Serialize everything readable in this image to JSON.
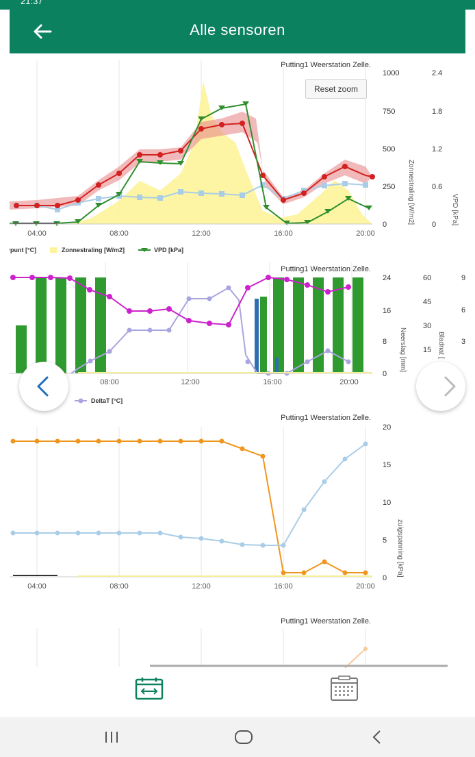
{
  "status_bar": {
    "time": "21:37"
  },
  "app_bar": {
    "title": "Alle sensoren"
  },
  "colors": {
    "primary": "#0c8160",
    "dew_red": "#d32020",
    "band_red": "#e88a8a",
    "sun_yellow": "#fdf39a",
    "vpd_green": "#2f8f2f",
    "temp_blue": "#a9cde6",
    "rain_green": "#2f9a2f",
    "rain_blue": "#2e6fb2",
    "leaf_magenta": "#cc22cc",
    "delta_lilac": "#a8a4e0",
    "orange": "#f0961e"
  },
  "chart1": {
    "station_label": "Putting1 Weerstation Zelle.",
    "reset_zoom_label": "Reset zoom",
    "x_ticks": [
      "04:00",
      "08:00",
      "12:00",
      "16:00",
      "20:00"
    ],
    "y_right1_ticks": [
      "1000",
      "750",
      "500",
      "250",
      "0"
    ],
    "y_right2_ticks": [
      "2.4",
      "1.8",
      "1.2",
      "0.6",
      "0"
    ],
    "y_right1_label": "Zonnestraling [W/m2]",
    "y_right2_label": "VPD [kPa]",
    "legend": [
      "wpunt [°C]",
      "Zonnestraling [W/m2]",
      "VPD [kPa]"
    ]
  },
  "chart2": {
    "station_label": "Putting1 Weerstation Zelle.",
    "x_ticks": [
      "08:00",
      "12:00",
      "16:00",
      "20:00"
    ],
    "y_right1_ticks": [
      "24",
      "16",
      "8",
      "0"
    ],
    "y_right2_ticks": [
      "60",
      "45",
      "30",
      "15"
    ],
    "y_right3_ticks": [
      "9",
      "6",
      "3"
    ],
    "y_right1_label": "Neerslag [mm]",
    "y_right2_label": "Bladnat [",
    "legend": [
      "DeltaT [°C]"
    ]
  },
  "chart3": {
    "station_label": "Putting1 Weerstation Zelle.",
    "x_ticks": [
      "04:00",
      "08:00",
      "12:00",
      "16:00",
      "20:00"
    ],
    "y_right_ticks": [
      "20",
      "15",
      "10",
      "5",
      "0"
    ],
    "y_right_label": "zuigspanning [kPa]"
  },
  "chart4": {
    "station_label": "Putting1 Weerstation Zelle."
  },
  "bottom_nav": {
    "icons": [
      "transfer-icon",
      "calendar-icon"
    ]
  },
  "system_nav": {
    "icons": [
      "recents-icon",
      "home-icon",
      "back-icon"
    ]
  },
  "chart_data": [
    {
      "type": "line",
      "x": [
        "03:00",
        "04:00",
        "05:00",
        "06:00",
        "07:00",
        "08:00",
        "09:00",
        "10:00",
        "11:00",
        "12:00",
        "13:00",
        "14:00",
        "15:00",
        "16:00",
        "17:00",
        "18:00",
        "19:00",
        "20:00"
      ],
      "series": [
        {
          "name": "wpunt [°C]",
          "values": [
            10,
            10,
            9,
            12,
            20,
            24,
            32,
            32,
            33,
            40,
            41,
            42,
            24,
            16,
            18,
            24,
            28,
            25
          ]
        },
        {
          "name": "Zonnestraling [W/m2]",
          "values": [
            0,
            0,
            0,
            20,
            80,
            180,
            280,
            200,
            400,
            950,
            700,
            400,
            80,
            40,
            200,
            320,
            250,
            0
          ]
        },
        {
          "name": "VPD [kPa]",
          "values": [
            0,
            0,
            0,
            0.05,
            0.3,
            0.45,
            1.05,
            1.05,
            1.04,
            1.68,
            1.85,
            1.93,
            0.25,
            0,
            0.02,
            0.2,
            0.42,
            0.25
          ]
        },
        {
          "name": "",
          "values": [
            120,
            120,
            95,
            135,
            165,
            180,
            170,
            165,
            210,
            200,
            195,
            190,
            250,
            160,
            220,
            250,
            260,
            250
          ]
        }
      ]
    },
    {
      "type": "bar",
      "x": [
        "03:00",
        "04:00",
        "05:00",
        "06:00",
        "07:00",
        "08:00",
        "09:00",
        "10:00",
        "11:00",
        "12:00",
        "13:00",
        "14:00",
        "15:00",
        "16:00",
        "17:00",
        "18:00",
        "19:00",
        "20:00"
      ],
      "series": [
        {
          "name": "Neerslag [mm]",
          "values": [
            11,
            24,
            24,
            24,
            24,
            24,
            0,
            0,
            0,
            0,
            0,
            0,
            19,
            24,
            24,
            24,
            24,
            24
          ]
        },
        {
          "name": "Bladnat",
          "values": [
            60,
            60,
            60,
            60,
            54,
            51,
            42,
            42,
            43,
            35,
            33,
            32,
            60,
            60,
            60,
            55,
            50,
            55
          ]
        },
        {
          "name": "DeltaT [°C]",
          "values": [
            0,
            0,
            0,
            1,
            2.7,
            4.3,
            8.2,
            8.2,
            8.2,
            14.5,
            14.5,
            16,
            1,
            0,
            0,
            2.5,
            4,
            3
          ]
        }
      ]
    },
    {
      "type": "line",
      "x": [
        "03:00",
        "04:00",
        "05:00",
        "06:00",
        "07:00",
        "08:00",
        "09:00",
        "10:00",
        "11:00",
        "12:00",
        "13:00",
        "14:00",
        "15:00",
        "16:00",
        "17:00",
        "18:00",
        "19:00",
        "20:00"
      ],
      "series": [
        {
          "name": "",
          "values": [
            18,
            18,
            18,
            18,
            18,
            18,
            18,
            18,
            18,
            18,
            18,
            17,
            16,
            3,
            3,
            4,
            3,
            3
          ]
        },
        {
          "name": "",
          "values": [
            5.8,
            5.8,
            5.8,
            5.8,
            5.8,
            5.8,
            5.8,
            5.8,
            5.3,
            5.1,
            4.8,
            4.2,
            4.1,
            4.1,
            8.8,
            12.6,
            15.6,
            17.6
          ]
        }
      ],
      "ylim": [
        0,
        20
      ]
    }
  ]
}
